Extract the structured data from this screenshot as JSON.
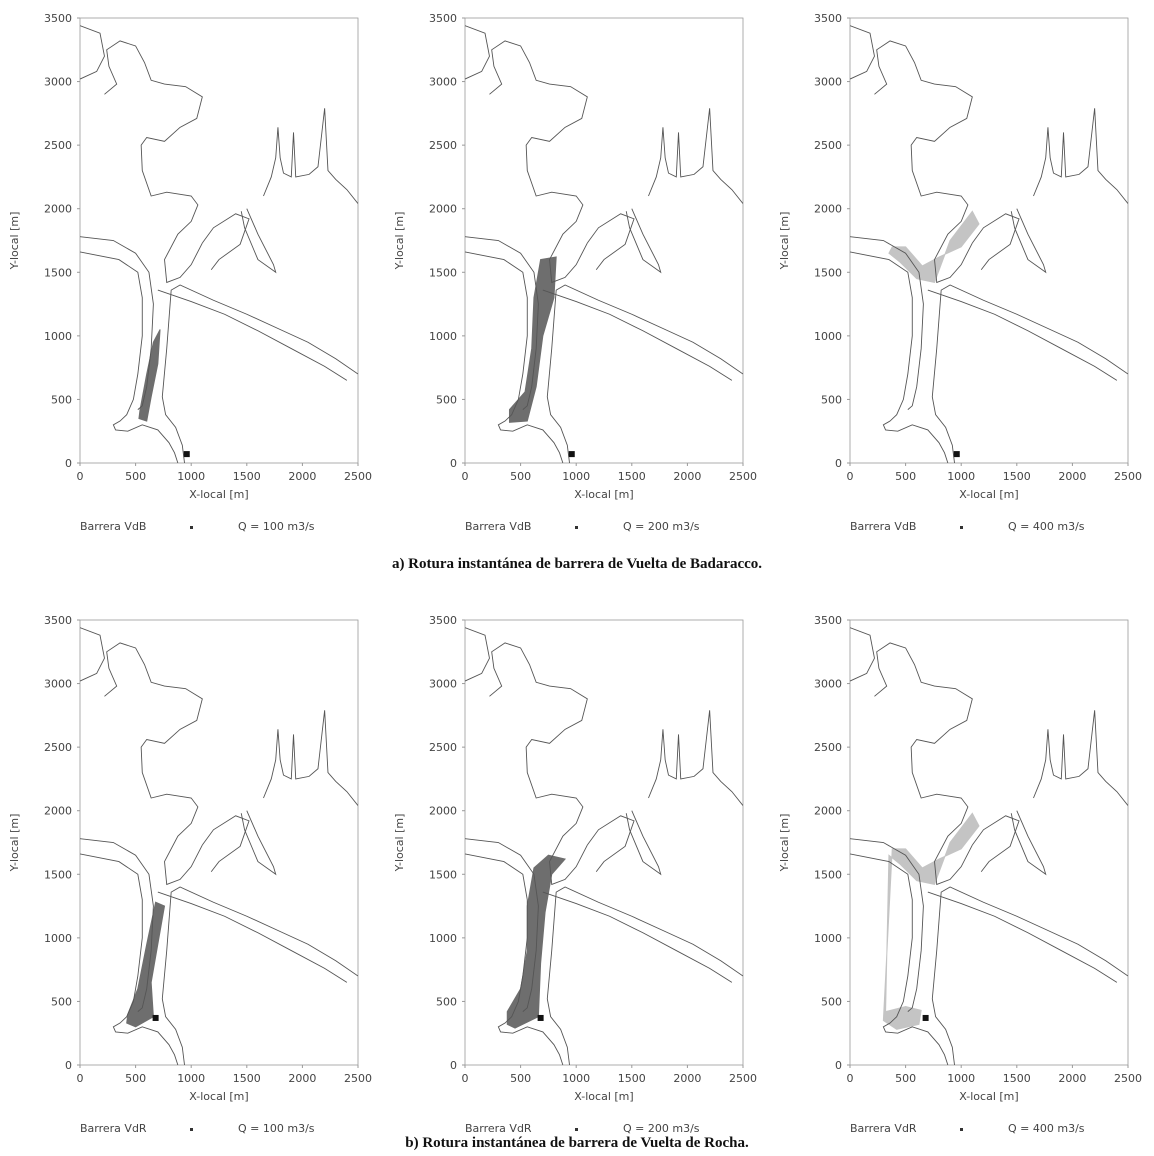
{
  "captions": {
    "a": "a) Rotura instantánea de barrera de Vuelta de Badaracco.",
    "b": "b) Rotura instantánea de barrera de Vuelta de Rocha."
  },
  "colors": {
    "coastline": "#555555",
    "dark_plume": "#6e6e6e",
    "light_plume": "#c4c4c4",
    "barrier": "#111111",
    "axis": "#999999"
  },
  "chart_data": [
    {
      "type": "map-plot",
      "group": "a",
      "xlabel": "X-local [m]",
      "ylabel": "Y-local [m]",
      "xlim": [
        0,
        2500
      ],
      "ylim": [
        0,
        3500
      ],
      "xticks": [
        "0",
        "500",
        "1000",
        "1500",
        "2000",
        "2500"
      ],
      "yticks": [
        "0",
        "500",
        "1000",
        "1500",
        "2000",
        "2500",
        "3000",
        "3500"
      ],
      "legend": {
        "barrier": "Barrera VdB",
        "flow": "Q = 100 m3/s"
      },
      "barrier_point": [
        960,
        70
      ],
      "plume_shade": "dark",
      "plume": [
        [
          540,
          420
        ],
        [
          600,
          700
        ],
        [
          660,
          950
        ],
        [
          720,
          1050
        ],
        [
          700,
          780
        ],
        [
          640,
          520
        ],
        [
          600,
          330
        ],
        [
          530,
          350
        ]
      ]
    },
    {
      "type": "map-plot",
      "group": "a",
      "xlabel": "X-local [m]",
      "ylabel": "Y-local [m]",
      "xlim": [
        0,
        2500
      ],
      "ylim": [
        0,
        3500
      ],
      "xticks": [
        "0",
        "500",
        "1000",
        "1500",
        "2000",
        "2500"
      ],
      "yticks": [
        "0",
        "500",
        "1000",
        "1500",
        "2000",
        "2500",
        "3000",
        "3500"
      ],
      "legend": {
        "barrier": "Barrera VdB",
        "flow": "Q = 200 m3/s"
      },
      "barrier_point": [
        960,
        70
      ],
      "plume_shade": "dark",
      "plume": [
        [
          400,
          420
        ],
        [
          540,
          560
        ],
        [
          600,
          900
        ],
        [
          620,
          1300
        ],
        [
          680,
          1600
        ],
        [
          820,
          1620
        ],
        [
          800,
          1300
        ],
        [
          700,
          1000
        ],
        [
          640,
          600
        ],
        [
          560,
          330
        ],
        [
          400,
          320
        ]
      ]
    },
    {
      "type": "map-plot",
      "group": "a",
      "xlabel": "X-local [m]",
      "ylabel": "Y-local [m]",
      "xlim": [
        0,
        2500
      ],
      "ylim": [
        0,
        3500
      ],
      "xticks": [
        "0",
        "500",
        "1000",
        "1500",
        "2000",
        "2500"
      ],
      "yticks": [
        "0",
        "500",
        "1000",
        "1500",
        "2000",
        "2500",
        "3000",
        "3500"
      ],
      "legend": {
        "barrier": "Barrera VdB",
        "flow": "Q = 400 m3/s"
      },
      "barrier_point": [
        960,
        70
      ],
      "plume_shade": "light",
      "plume": [
        [
          350,
          1650
        ],
        [
          450,
          1580
        ],
        [
          600,
          1450
        ],
        [
          760,
          1420
        ],
        [
          900,
          1750
        ],
        [
          1100,
          1980
        ],
        [
          1160,
          1880
        ],
        [
          1000,
          1700
        ],
        [
          800,
          1620
        ],
        [
          650,
          1550
        ],
        [
          500,
          1700
        ],
        [
          380,
          1700
        ]
      ]
    },
    {
      "type": "map-plot",
      "group": "b",
      "xlabel": "X-local [m]",
      "ylabel": "Y-local [m]",
      "xlim": [
        0,
        2500
      ],
      "ylim": [
        0,
        3500
      ],
      "xticks": [
        "0",
        "500",
        "1000",
        "1500",
        "2000",
        "2500"
      ],
      "yticks": [
        "0",
        "500",
        "1000",
        "1500",
        "2000",
        "2500",
        "3000",
        "3500"
      ],
      "legend": {
        "barrier": "Barrera VdR",
        "flow": "Q = 100 m3/s"
      },
      "barrier_point": [
        680,
        370
      ],
      "plume_shade": "dark",
      "plume": [
        [
          430,
          400
        ],
        [
          520,
          600
        ],
        [
          600,
          950
        ],
        [
          680,
          1280
        ],
        [
          760,
          1250
        ],
        [
          700,
          950
        ],
        [
          640,
          650
        ],
        [
          660,
          380
        ],
        [
          500,
          300
        ],
        [
          420,
          330
        ]
      ]
    },
    {
      "type": "map-plot",
      "group": "b",
      "xlabel": "X-local [m]",
      "ylabel": "Y-local [m]",
      "xlim": [
        0,
        2500
      ],
      "ylim": [
        0,
        3500
      ],
      "xticks": [
        "0",
        "500",
        "1000",
        "1500",
        "2000",
        "2500"
      ],
      "yticks": [
        "0",
        "500",
        "1000",
        "1500",
        "2000",
        "2500",
        "3000",
        "3500"
      ],
      "legend": {
        "barrier": "Barrera VdR",
        "flow": "Q = 200 m3/s"
      },
      "barrier_point": [
        680,
        370
      ],
      "plume_shade": "dark",
      "plume": [
        [
          380,
          420
        ],
        [
          500,
          600
        ],
        [
          560,
          900
        ],
        [
          560,
          1250
        ],
        [
          620,
          1550
        ],
        [
          750,
          1650
        ],
        [
          900,
          1620
        ],
        [
          780,
          1500
        ],
        [
          720,
          1200
        ],
        [
          680,
          800
        ],
        [
          660,
          380
        ],
        [
          450,
          290
        ],
        [
          380,
          320
        ]
      ]
    },
    {
      "type": "map-plot",
      "group": "b",
      "xlabel": "X-local [m]",
      "ylabel": "Y-local [m]",
      "xlim": [
        0,
        2500
      ],
      "ylim": [
        0,
        3500
      ],
      "xticks": [
        "0",
        "500",
        "1000",
        "1500",
        "2000",
        "2500"
      ],
      "yticks": [
        "0",
        "500",
        "1000",
        "1500",
        "2000",
        "2500",
        "3000",
        "3500"
      ],
      "legend": {
        "barrier": "Barrera VdR",
        "flow": "Q = 400 m3/s"
      },
      "barrier_point": [
        680,
        370
      ],
      "plume_shade": "light",
      "plume": [
        [
          350,
          1650
        ],
        [
          450,
          1580
        ],
        [
          600,
          1450
        ],
        [
          760,
          1420
        ],
        [
          900,
          1750
        ],
        [
          1100,
          1980
        ],
        [
          1160,
          1880
        ],
        [
          1000,
          1700
        ],
        [
          800,
          1620
        ],
        [
          650,
          1550
        ],
        [
          500,
          1700
        ],
        [
          380,
          1700
        ],
        [
          300,
          350
        ],
        [
          420,
          280
        ],
        [
          620,
          320
        ],
        [
          640,
          430
        ],
        [
          500,
          460
        ],
        [
          320,
          420
        ]
      ]
    }
  ]
}
